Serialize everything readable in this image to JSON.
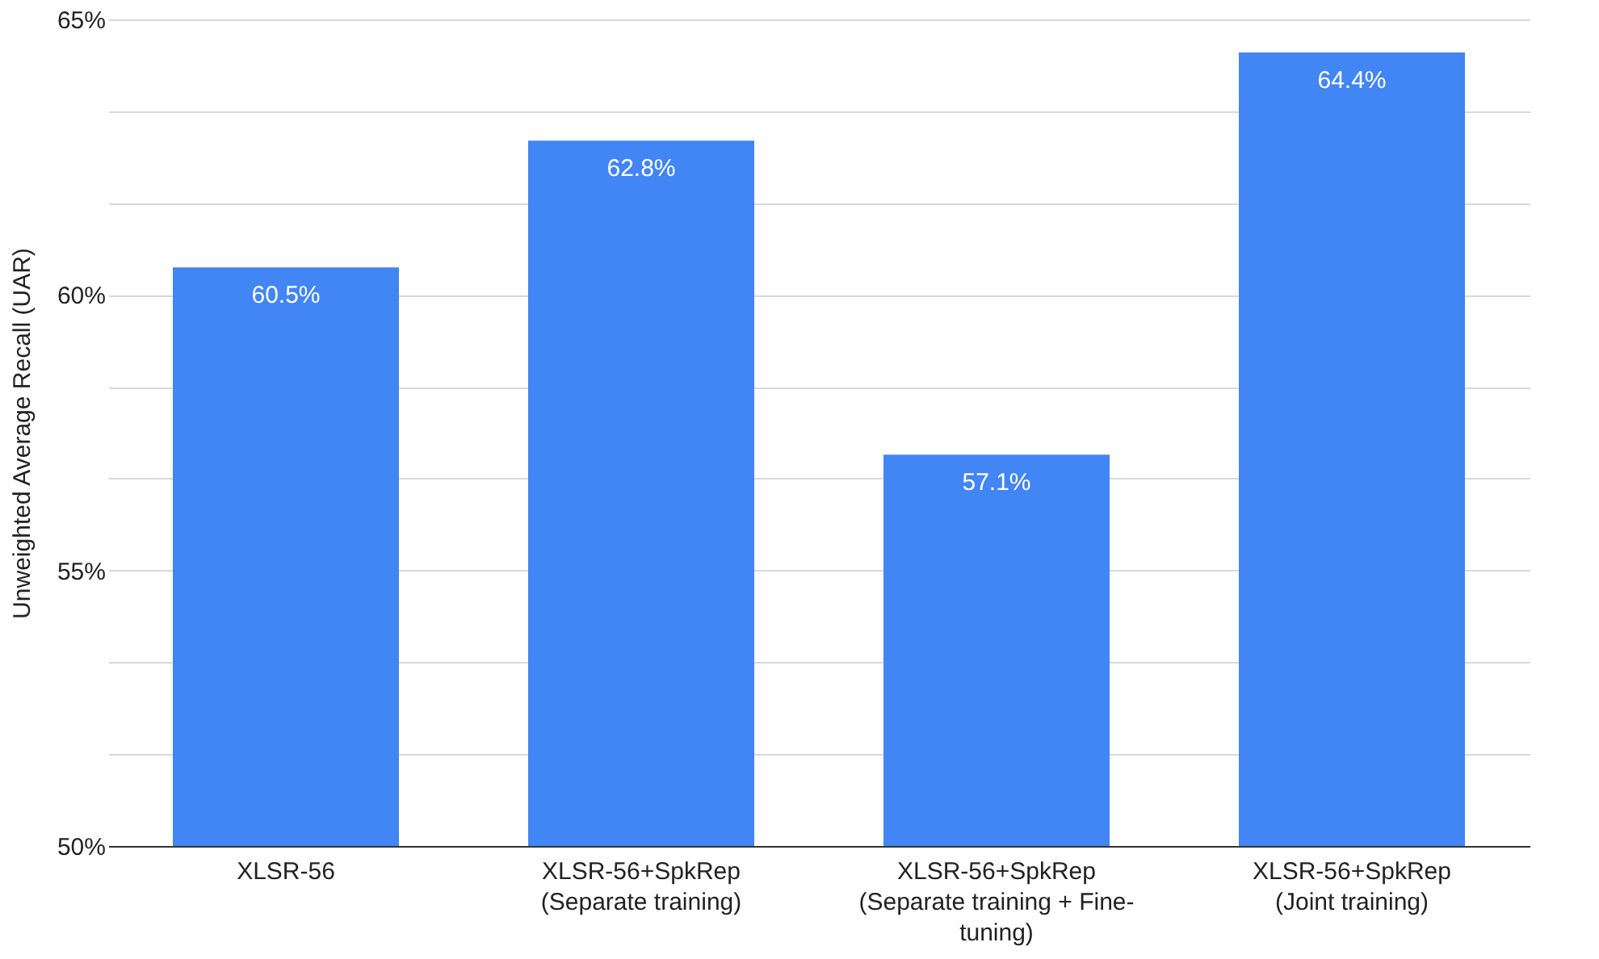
{
  "chart_data": {
    "type": "bar",
    "ylabel": "Unweighted Average Recall (UAR)",
    "categories": [
      "XLSR-56",
      "XLSR-56+SpkRep\n(Separate training)",
      "XLSR-56+SpkRep\n(Separate training + Fine-\ntuning)",
      "XLSR-56+SpkRep\n(Joint training)"
    ],
    "values": [
      60.5,
      62.8,
      57.1,
      64.4
    ],
    "value_labels": [
      "60.5%",
      "62.8%",
      "57.1%",
      "64.4%"
    ],
    "color": "#4285f4",
    "ylim": [
      50,
      65
    ],
    "yticks": [
      {
        "value": 50,
        "label": "50%"
      },
      {
        "value": 51.67,
        "label": null
      },
      {
        "value": 53.33,
        "label": null
      },
      {
        "value": 55,
        "label": "55%"
      },
      {
        "value": 56.67,
        "label": null
      },
      {
        "value": 58.33,
        "label": null
      },
      {
        "value": 60,
        "label": "60%"
      },
      {
        "value": 61.67,
        "label": null
      },
      {
        "value": 63.33,
        "label": null
      },
      {
        "value": 65,
        "label": "65%"
      }
    ],
    "grid": "y"
  }
}
